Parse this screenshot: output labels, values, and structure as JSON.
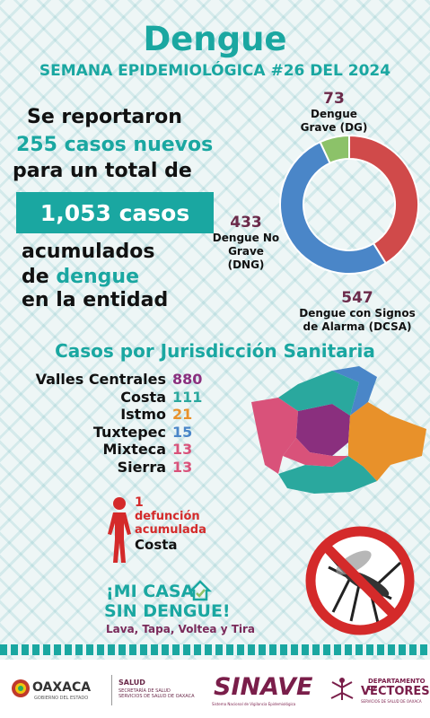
{
  "header": {
    "title": "Dengue",
    "subtitle": "SEMANA EPIDEMIOLÓGICA #26 DEL 2024"
  },
  "summary": {
    "line1": "Se reportaron",
    "new_cases": "255 casos nuevos",
    "line3": "para un total de",
    "total": "1,053 casos",
    "line5": "acumulados",
    "line6_prefix": "de",
    "line6_word": "dengue",
    "line7": "en la entidad"
  },
  "chart_data": {
    "type": "pie",
    "donut": true,
    "categories": [
      "Dengue Grave (DG)",
      "Dengue No Grave (DNG)",
      "Dengue con Signos de Alarma (DCSA)"
    ],
    "values": [
      73,
      433,
      547
    ],
    "colors": [
      "#8cc269",
      "#d04a4a",
      "#4a86c8"
    ],
    "labels": [
      {
        "value": "73",
        "line1": "Dengue",
        "line2": "Grave (DG)",
        "line3": ""
      },
      {
        "value": "433",
        "line1": "Dengue No",
        "line2": "Grave",
        "line3": "(DNG)"
      },
      {
        "value": "547",
        "line1": "Dengue con Signos",
        "line2": "de Alarma (DCSA)",
        "line3": ""
      }
    ]
  },
  "jurisdictions": {
    "title": "Casos por Jurisdicción Sanitaria",
    "items": [
      {
        "name": "Valles Centrales",
        "value": "880",
        "color": "#8a2f7e"
      },
      {
        "name": "Costa",
        "value": "111",
        "color": "#2aa89e"
      },
      {
        "name": "Istmo",
        "value": "21",
        "color": "#e8912a"
      },
      {
        "name": "Tuxtepec",
        "value": "15",
        "color": "#4a86c8"
      },
      {
        "name": "Mixteca",
        "value": "13",
        "color": "#d9527a"
      },
      {
        "name": "Sierra",
        "value": "13",
        "color": "#d9527a"
      }
    ]
  },
  "deaths": {
    "line1": "1",
    "line2": "defunción",
    "line3": "acumulada",
    "location": "Costa"
  },
  "slogan": {
    "line1": "¡MI CASA",
    "line2": "SIN DENGUE!",
    "line3": "Lava, Tapa, Voltea y Tira"
  },
  "footer": {
    "oaxaca": "OAXACA",
    "oaxaca_sub": "GOBIERNO DEL ESTADO",
    "salud": "SALUD",
    "salud_sub1": "SECRETARÍA DE SALUD",
    "salud_sub2": "SERVICIOS DE SALUD DE OAXACA",
    "sinave": "SINAVE",
    "sinave_sub": "Sistema Nacional de Vigilancia Epidemiológica",
    "dep1": "DEPARTAMENTO DE",
    "dep2": "VECTORES",
    "dep3": "SERVICIOS DE SALUD DE OAXACA"
  }
}
